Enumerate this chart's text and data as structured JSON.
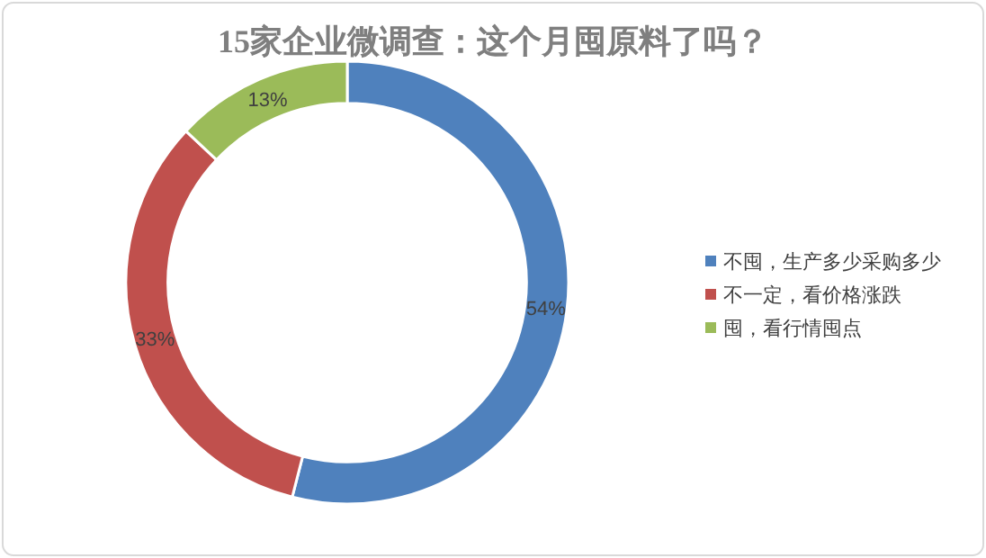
{
  "chart_data": {
    "type": "donut",
    "title": "15家企业微调查：这个月囤原料了吗？",
    "categories": [
      "不囤，生产多少采购多少",
      "不一定，看价格涨跌",
      "囤，看行情囤点"
    ],
    "values": [
      54,
      33,
      13
    ],
    "colors": [
      "#4f81bd",
      "#c0504d",
      "#9bbb59"
    ],
    "value_labels": [
      "54%",
      "33%",
      "13%"
    ],
    "legend": "right"
  }
}
